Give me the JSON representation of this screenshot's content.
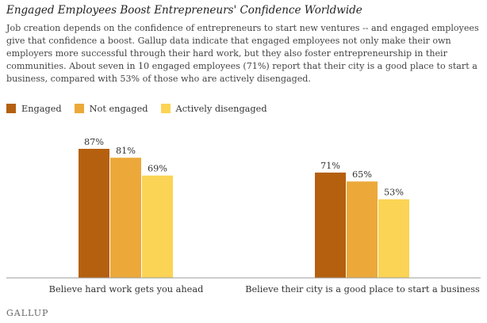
{
  "header": {
    "title": "Engaged Employees Boost Entrepreneurs' Confidence Worldwide",
    "description": "Job creation depends on the confidence of entrepreneurs to start new ventures -- and engaged employees give that confidence a boost. Gallup data indicate that engaged employees not only make their own employers more successful through their hard work, but they also foster entrepreneurship in their communities. About seven in 10 engaged employees (71%) report that their city is a good place to start a business, compared with 53% of those who are actively disengaged."
  },
  "footer": {
    "source": "GALLUP"
  },
  "chart_data": {
    "type": "bar",
    "categories": [
      "Believe hard work gets you ahead",
      "Believe their city is a good place to start a business"
    ],
    "series": [
      {
        "name": "Engaged",
        "values": [
          87,
          71
        ],
        "labels": [
          "87%",
          "71%"
        ],
        "color": "#B5600E"
      },
      {
        "name": "Not engaged",
        "values": [
          81,
          65
        ],
        "labels": [
          "81%",
          "65%"
        ],
        "color": "#ECA93A"
      },
      {
        "name": "Actively disengaged",
        "values": [
          69,
          53
        ],
        "labels": [
          "69%",
          "53%"
        ],
        "color": "#FBD455"
      }
    ],
    "ylim": [
      0,
      100
    ],
    "grid": false,
    "legend_position": "top-left"
  }
}
